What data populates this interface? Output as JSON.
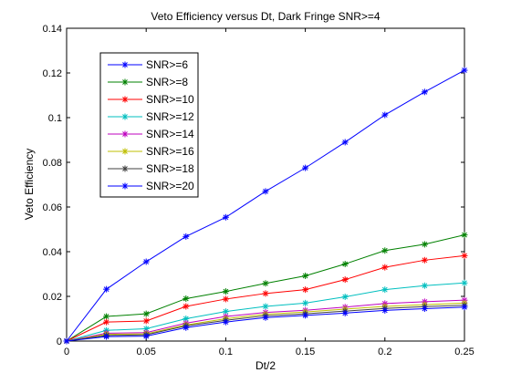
{
  "chart_data": {
    "type": "line",
    "title": "Veto Efficiency versus Dt, Dark Fringe SNR>=4",
    "xlabel": "Dt/2",
    "ylabel": "Veto Efficiency",
    "xlim": [
      0,
      0.25
    ],
    "ylim": [
      0,
      0.14
    ],
    "xticks": [
      0,
      0.05,
      0.1,
      0.15,
      0.2,
      0.25
    ],
    "xtick_labels": [
      "0",
      "0.05",
      "0.1",
      "0.15",
      "0.2",
      "0.25"
    ],
    "yticks": [
      0,
      0.02,
      0.04,
      0.06,
      0.08,
      0.1,
      0.12,
      0.14
    ],
    "ytick_labels": [
      "0",
      "0.02",
      "0.04",
      "0.06",
      "0.08",
      "0.1",
      "0.12",
      "0.14"
    ],
    "grid": false,
    "legend_position": "top-left",
    "marker": "*",
    "x": [
      0,
      0.025,
      0.05,
      0.075,
      0.1,
      0.125,
      0.15,
      0.175,
      0.2,
      0.225,
      0.25
    ],
    "series": [
      {
        "name": "SNR>=6",
        "color": "#0000ff",
        "values": [
          0,
          0.0232,
          0.0355,
          0.0468,
          0.0554,
          0.067,
          0.0775,
          0.089,
          0.1012,
          0.1115,
          0.1212
        ]
      },
      {
        "name": "SNR>=8",
        "color": "#008000",
        "values": [
          0,
          0.011,
          0.0122,
          0.019,
          0.0222,
          0.0258,
          0.0292,
          0.0345,
          0.0405,
          0.0433,
          0.0475
        ]
      },
      {
        "name": "SNR>=10",
        "color": "#ff0000",
        "values": [
          0,
          0.0085,
          0.009,
          0.0155,
          0.0188,
          0.0213,
          0.023,
          0.0275,
          0.033,
          0.0362,
          0.0382
        ]
      },
      {
        "name": "SNR>=12",
        "color": "#00bfbf",
        "values": [
          0,
          0.0048,
          0.0055,
          0.01,
          0.0132,
          0.0155,
          0.017,
          0.0198,
          0.023,
          0.0248,
          0.026
        ]
      },
      {
        "name": "SNR>=14",
        "color": "#bf00bf",
        "values": [
          0,
          0.0035,
          0.0038,
          0.008,
          0.011,
          0.0128,
          0.0138,
          0.0152,
          0.0168,
          0.0176,
          0.0183
        ]
      },
      {
        "name": "SNR>=16",
        "color": "#bfbf00",
        "values": [
          0,
          0.003,
          0.0032,
          0.0072,
          0.01,
          0.012,
          0.013,
          0.0143,
          0.0155,
          0.0163,
          0.017
        ]
      },
      {
        "name": "SNR>=18",
        "color": "#404040",
        "values": [
          0,
          0.0025,
          0.0028,
          0.0068,
          0.0093,
          0.0113,
          0.0122,
          0.0134,
          0.0146,
          0.0154,
          0.016
        ]
      },
      {
        "name": "SNR>=20",
        "color": "#0000ff",
        "values": [
          0,
          0.002,
          0.0022,
          0.006,
          0.0085,
          0.0105,
          0.0115,
          0.0125,
          0.0137,
          0.0145,
          0.0152
        ]
      }
    ]
  }
}
